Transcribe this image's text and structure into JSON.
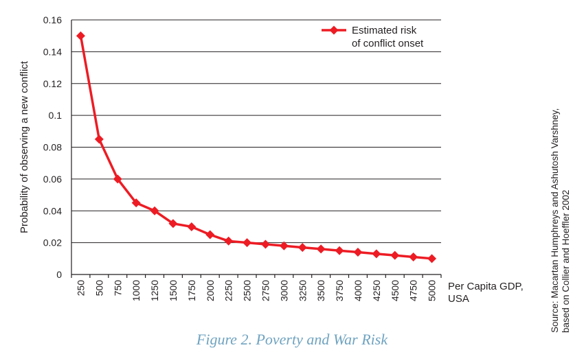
{
  "chart_data": {
    "type": "line",
    "x_categories": [
      "250",
      "500",
      "750",
      "1000",
      "1250",
      "1500",
      "1750",
      "2000",
      "2250",
      "2500",
      "2750",
      "3000",
      "3250",
      "3500",
      "3750",
      "4000",
      "4250",
      "4500",
      "4750",
      "5000"
    ],
    "series": [
      {
        "name": "Estimated risk of conflict onset",
        "values": [
          0.15,
          0.085,
          0.06,
          0.045,
          0.04,
          0.032,
          0.03,
          0.025,
          0.021,
          0.02,
          0.019,
          0.018,
          0.017,
          0.016,
          0.015,
          0.014,
          0.013,
          0.012,
          0.011,
          0.01
        ]
      }
    ],
    "legend_lines": [
      "Estimated risk",
      "of conflict onset"
    ],
    "y_ticks": [
      "0",
      "0.02",
      "0.04",
      "0.06",
      "0.08",
      "0.1",
      "0.12",
      "0.14",
      "0.16"
    ],
    "ylim": [
      0,
      0.16
    ],
    "ylabel": "Probability of observing a new conflict",
    "xlabel_lines": [
      "Per Capita GDP,",
      "USA"
    ],
    "grid": true,
    "legend_position": "top-right",
    "series_color": "#ed1c24"
  },
  "caption": "Figure 2. Poverty and War Risk",
  "source_lines": [
    "Source: Macartan Humphreys and Ashutosh Varshney,",
    "based on Collier and Hoeffler 2002"
  ]
}
